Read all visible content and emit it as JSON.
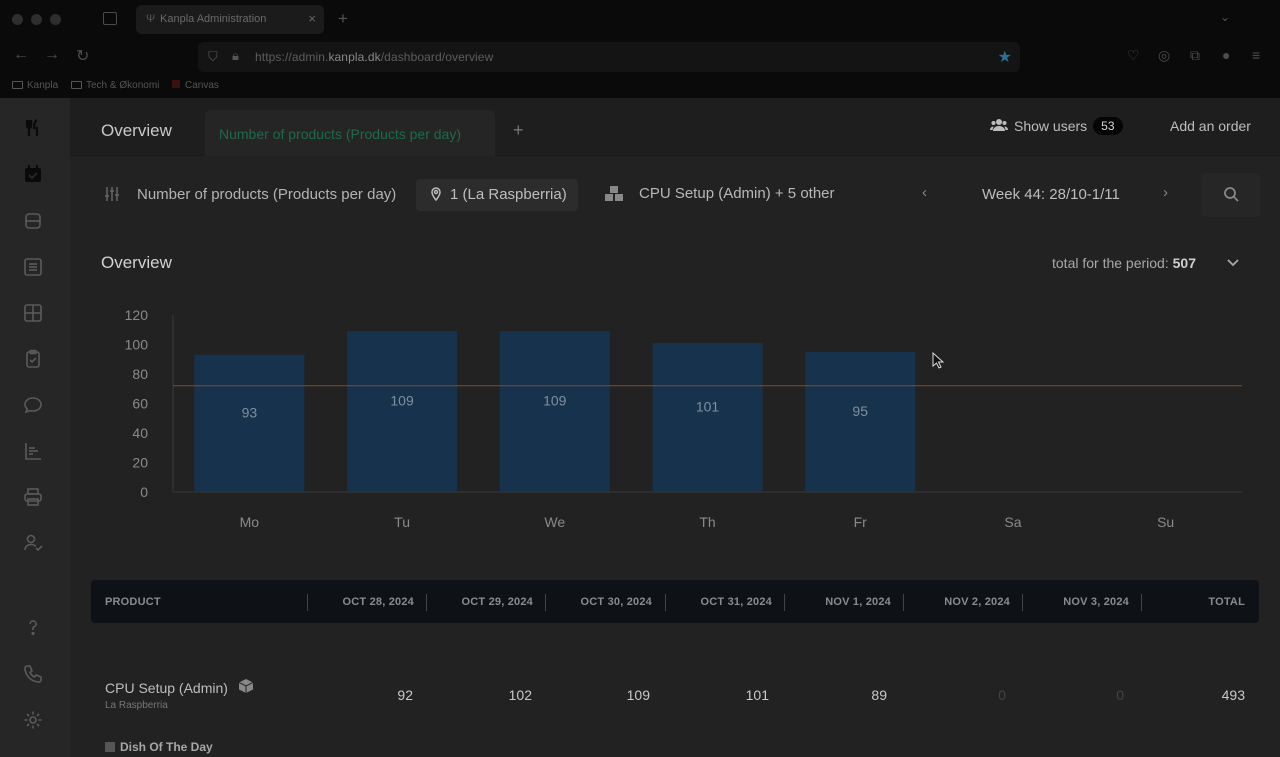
{
  "browser": {
    "tab_title": "Kanpla Administration",
    "url_prefix": "https://admin.",
    "url_domain": "kanpla.dk",
    "url_path": "/dashboard/overview",
    "bookmarks": [
      "Kanpla",
      "Tech & Økonomi",
      "Canvas"
    ]
  },
  "topbar": {
    "overview_tab": "Overview",
    "active_tab": "Number of products (Products per day)",
    "add_tab": "+",
    "show_users_label": "Show users",
    "users_count": "53",
    "add_order_label": "Add an order"
  },
  "filters": {
    "metric": "Number of products (Products per day)",
    "location": "1 (La Raspberria)",
    "products": "CPU Setup (Admin) + 5 other",
    "week": "Week 44: 28/10-1/11",
    "prev": "‹",
    "next": "›"
  },
  "overview": {
    "title": "Overview",
    "total_label": "total for the period:",
    "total_value": "507"
  },
  "chart_data": {
    "type": "bar",
    "categories": [
      "Mo",
      "Tu",
      "We",
      "Th",
      "Fr",
      "Sa",
      "Su"
    ],
    "values": [
      93,
      109,
      109,
      101,
      95,
      null,
      null
    ],
    "data_labels": [
      "93",
      "109",
      "109",
      "101",
      "95",
      "",
      ""
    ],
    "yticks": [
      0,
      20,
      40,
      60,
      80,
      100,
      120
    ],
    "ylim": [
      0,
      120
    ],
    "reference_line": 72,
    "bar_color": "#17324d",
    "line_color": "#8a4a1c",
    "grid": false
  },
  "table": {
    "headers": [
      "PRODUCT",
      "OCT 28, 2024",
      "OCT 29, 2024",
      "OCT 30, 2024",
      "OCT 31, 2024",
      "NOV 1, 2024",
      "NOV 2, 2024",
      "NOV 3, 2024",
      "TOTAL"
    ],
    "rows": [
      {
        "name": "CPU Setup (Admin)",
        "location": "La Raspberria",
        "values": [
          "92",
          "102",
          "109",
          "101",
          "89",
          "0",
          "0",
          "493"
        ]
      }
    ],
    "group_label": "Dish Of The Day"
  },
  "colors": {
    "accent_green": "#1d6a4a",
    "bar": "#17324d",
    "reference_line": "#8a4a1c"
  },
  "icons": [
    "cutlery-icon",
    "calendar-check-icon",
    "database-icon",
    "list-icon",
    "grid-icon",
    "clipboard-check-icon",
    "chat-icon",
    "bar-chart-icon",
    "printer-icon",
    "user-check-icon",
    "help-icon",
    "phone-icon",
    "gear-icon"
  ]
}
